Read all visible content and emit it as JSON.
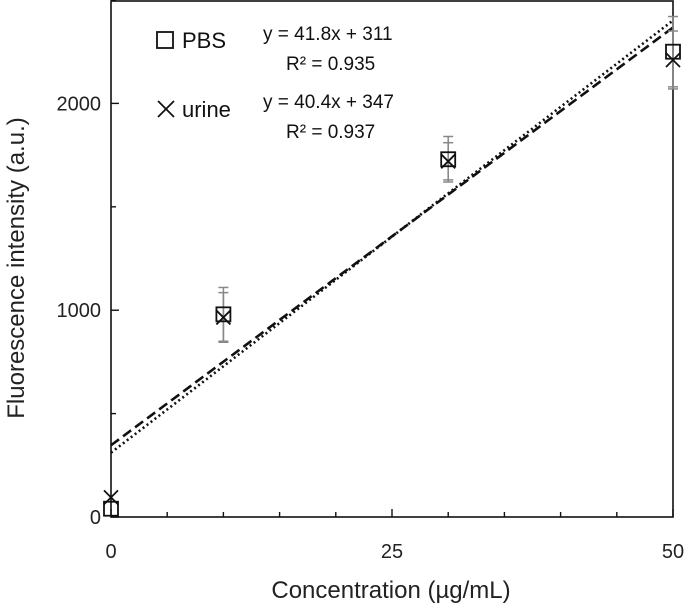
{
  "chart_data": {
    "type": "scatter",
    "title": "",
    "xlabel": "Concentration (µg/mL)",
    "ylabel": "Fluorescence intensity (a.u.)",
    "xlim": [
      0,
      50
    ],
    "ylim": [
      0,
      2500
    ],
    "x_ticks": [
      0,
      25,
      50
    ],
    "x_tick_labels": [
      "0",
      "25",
      "50"
    ],
    "y_ticks": [
      0,
      1000,
      2000
    ],
    "y_tick_labels": [
      "0",
      "1000",
      "2000"
    ],
    "grid": false,
    "legend_position": "top-left",
    "series": [
      {
        "name": "PBS",
        "marker": "square",
        "x": [
          0,
          10,
          30,
          50
        ],
        "y": [
          40,
          980,
          1730,
          2250
        ],
        "error": [
          0,
          130,
          110,
          170
        ],
        "fit": {
          "slope": 41.8,
          "intercept": 311,
          "style": "dotted"
        },
        "equation": "y = 41.8x + 311",
        "r2": "R² = 0.935"
      },
      {
        "name": "urine",
        "marker": "x",
        "x": [
          0,
          10,
          30,
          50
        ],
        "y": [
          95,
          965,
          1720,
          2210
        ],
        "error": [
          0,
          120,
          90,
          140
        ],
        "fit": {
          "slope": 40.4,
          "intercept": 347,
          "style": "dashed"
        },
        "equation": "y = 40.4x + 347",
        "r2": "R² = 0.937"
      }
    ]
  }
}
